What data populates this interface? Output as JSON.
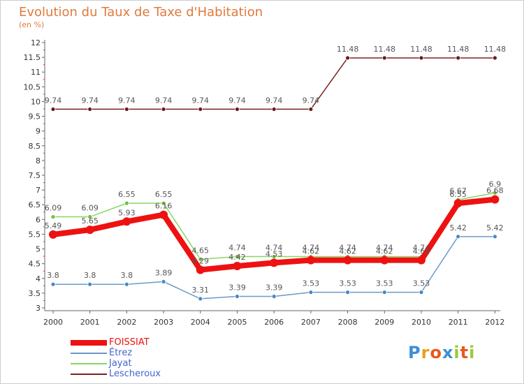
{
  "title": "Evolution du Taux de Taxe d'Habitation",
  "unit": "(en %)",
  "logo": {
    "letters": [
      {
        "ch": "P",
        "color": "#3a8fd8"
      },
      {
        "ch": "r",
        "color": "#e8a020"
      },
      {
        "ch": "o",
        "color": "#e85a1a"
      },
      {
        "ch": "x",
        "color": "#3a8fd8"
      },
      {
        "ch": "i",
        "color": "#9ac83a"
      },
      {
        "ch": "t",
        "color": "#e85a1a"
      },
      {
        "ch": "i",
        "color": "#9ac83a"
      }
    ]
  },
  "chart_data": {
    "type": "line",
    "title": "Evolution du Taux de Taxe d'Habitation",
    "ylabel": "(en %)",
    "xlabel": "",
    "ylim": [
      3,
      12
    ],
    "yticks": [
      "3",
      "3.5",
      "4",
      "4.5",
      "5",
      "5.5",
      "6",
      "6.5",
      "7",
      "7.5",
      "8",
      "8.5",
      "9",
      "9.5",
      "10",
      "10.5",
      "11",
      "11.5",
      "12"
    ],
    "x": [
      "2000",
      "2001",
      "2002",
      "2003",
      "2004",
      "2005",
      "2006",
      "2007",
      "2008",
      "2009",
      "2010",
      "2011",
      "2012"
    ],
    "grid": false,
    "legend_position": "bottom-left",
    "series": [
      {
        "name": "Lescheroux",
        "color": "#7a2020",
        "values": [
          9.74,
          9.74,
          9.74,
          9.74,
          9.74,
          9.74,
          9.74,
          9.74,
          11.48,
          11.48,
          11.48,
          11.48,
          11.48
        ],
        "labels": [
          "9.74",
          "9.74",
          "9.74",
          "9.74",
          "9.74",
          "9.74",
          "9.74",
          "9.74",
          "11.48",
          "11.48",
          "11.48",
          "11.48",
          "11.48"
        ]
      },
      {
        "name": "Jayat",
        "color": "#88d860",
        "values": [
          6.09,
          6.09,
          6.55,
          6.55,
          4.65,
          4.74,
          4.74,
          4.74,
          4.74,
          4.74,
          4.74,
          6.67,
          6.9
        ],
        "labels": [
          "6.09",
          "6.09",
          "6.55",
          "6.55",
          "4.65",
          "4.74",
          "4.74",
          "4.74",
          "4.74",
          "4.74",
          "4.74",
          "6.67",
          "6.9"
        ]
      },
      {
        "name": "Étrez",
        "color": "#6a9ac8",
        "values": [
          3.8,
          3.8,
          3.8,
          3.89,
          3.31,
          3.39,
          3.39,
          3.53,
          3.53,
          3.53,
          3.53,
          5.42,
          5.42
        ],
        "labels": [
          "3.8",
          "3.8",
          "3.8",
          "3.89",
          "3.31",
          "3.39",
          "3.39",
          "3.53",
          "3.53",
          "3.53",
          "3.53",
          "5.42",
          "5.42"
        ]
      },
      {
        "name": "FOISSIAT",
        "color": "#ee1111",
        "values": [
          5.49,
          5.65,
          5.93,
          6.16,
          4.29,
          4.42,
          4.53,
          4.62,
          4.62,
          4.62,
          4.62,
          6.55,
          6.68
        ],
        "labels": [
          "5.49",
          "5.65",
          "5.93",
          "6.16",
          "4.29",
          "4.42",
          "4.53",
          "4.62",
          "4.62",
          "4.62",
          "4.62",
          "6.55",
          "6.68"
        ]
      }
    ],
    "legend": [
      "FOISSIAT",
      "Étrez",
      "Jayat",
      "Lescheroux"
    ]
  }
}
